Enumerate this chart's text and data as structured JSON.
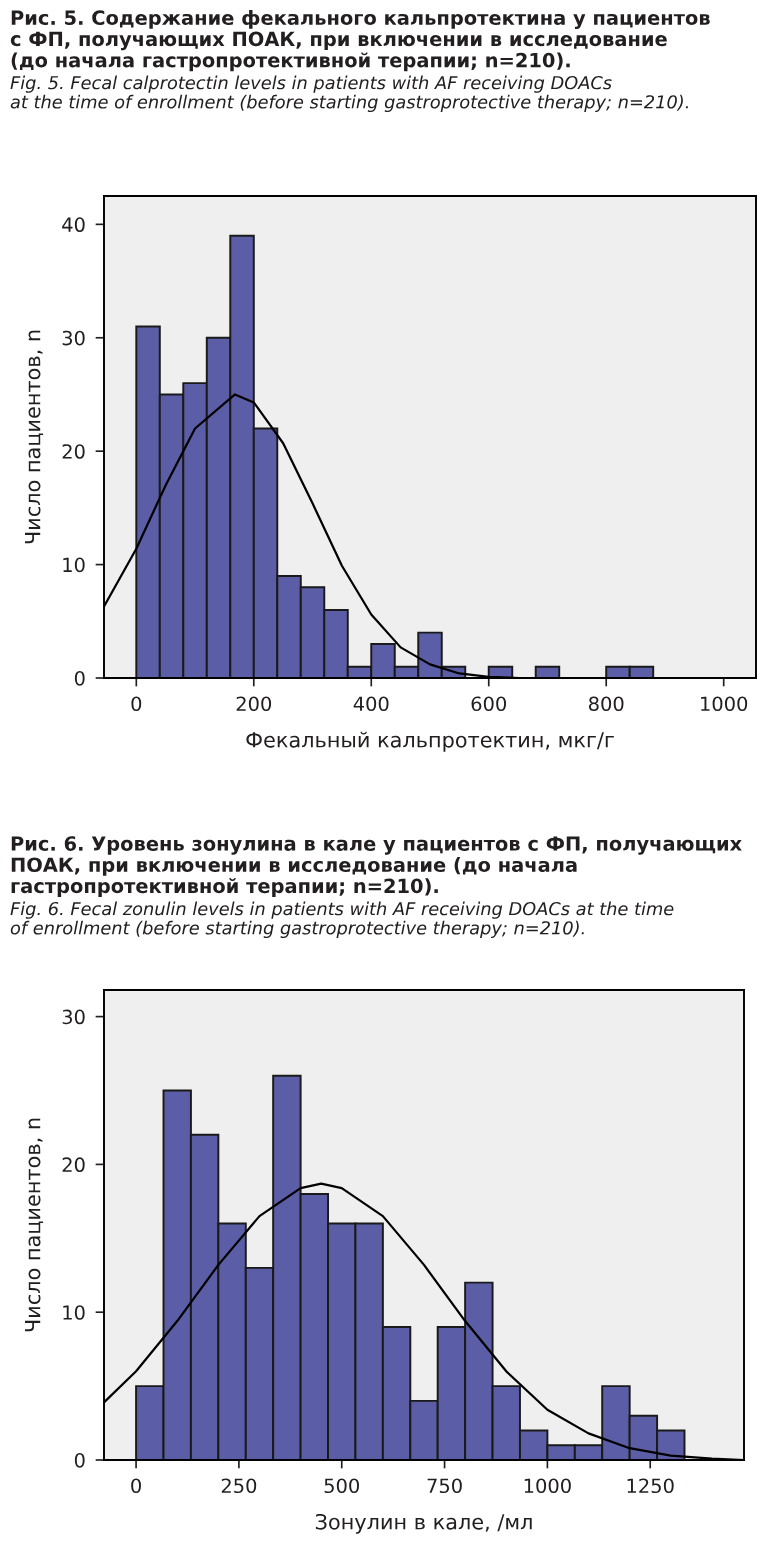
{
  "chart_data": [
    {
      "type": "histogram",
      "title": "Рис. 5. Содержание фекального кальпротектина у пациентов\nс ФП, получающих ПОАК, при включении в исследование\n(до начала гастропротективной терапии; n=210).",
      "subtitle": "Fig. 5. Fecal calprotectin levels in patients with AF receiving DOACs\nat the time of enrollment (before starting gastroprotective therapy; n=210).",
      "xlabel": "Фекальный кальпротектин, мкг/г",
      "ylabel": "Число пациентов, n",
      "bins": [
        0,
        40,
        80,
        120,
        160,
        200,
        240,
        280,
        320,
        360,
        400,
        440,
        480,
        520,
        560,
        600,
        640,
        680,
        720,
        760,
        800,
        840,
        880
      ],
      "values": [
        31,
        25,
        26,
        30,
        39,
        22,
        9,
        8,
        6,
        1,
        3,
        1,
        4,
        1,
        0,
        1,
        0,
        1,
        0,
        0,
        1,
        1
      ],
      "color": "#5b5ea6",
      "series": [
        {
          "type": "line",
          "color": "#000000",
          "x": [
            -55,
            0,
            50,
            100,
            168,
            200,
            250,
            300,
            350,
            400,
            450,
            500,
            550,
            600,
            650
          ],
          "values": [
            6.3,
            11.4,
            17.0,
            22.0,
            25.0,
            24.3,
            20.7,
            15.4,
            9.9,
            5.6,
            2.7,
            1.2,
            0.4,
            0.1,
            0.0
          ]
        }
      ],
      "xlim": [
        -55,
        1055
      ],
      "ylim": [
        0,
        42.5
      ],
      "xticks": [
        0,
        200,
        400,
        600,
        800,
        1000
      ],
      "yticks": [
        0,
        10,
        20,
        30,
        40
      ],
      "grid": false
    },
    {
      "type": "histogram",
      "title": "Рис. 6. Уровень зонулина в кале у пациентов с ФП, получающих\nПОАК, при включении в исследование (до начала\nгастропротективной терапии; n=210).",
      "subtitle": "Fig. 6. Fecal zonulin levels in patients with AF receiving DOACs at the time\nof enrollment (before starting gastroprotective therapy; n=210).",
      "xlabel": "Зонулин в кале, /мл",
      "ylabel": "Число пациентов, n",
      "bins": [
        0,
        66.7,
        133.3,
        200,
        266.7,
        333.3,
        400,
        466.7,
        533.3,
        600,
        666.7,
        733.3,
        800,
        866.7,
        933.3,
        1000,
        1066.7,
        1133.3,
        1200,
        1266.7,
        1333.3
      ],
      "values": [
        5,
        25,
        22,
        16,
        13,
        26,
        18,
        16,
        16,
        9,
        4,
        9,
        12,
        5,
        2,
        1,
        1,
        5,
        3,
        2
      ],
      "color": "#5b5ea6",
      "series": [
        {
          "type": "line",
          "color": "#000000",
          "x": [
            -78,
            0,
            100,
            200,
            300,
            400,
            450,
            500,
            600,
            700,
            800,
            900,
            1000,
            1100,
            1200,
            1300,
            1400,
            1478
          ],
          "values": [
            3.9,
            6.0,
            9.4,
            13.2,
            16.5,
            18.4,
            18.7,
            18.4,
            16.5,
            13.2,
            9.4,
            6.0,
            3.4,
            1.8,
            0.8,
            0.3,
            0.1,
            0.0
          ]
        }
      ],
      "xlim": [
        -78,
        1478
      ],
      "ylim": [
        0,
        31.8
      ],
      "xticks": [
        0,
        250,
        500,
        750,
        1000,
        1250
      ],
      "yticks": [
        0,
        10,
        20,
        30
      ],
      "grid": false
    }
  ]
}
